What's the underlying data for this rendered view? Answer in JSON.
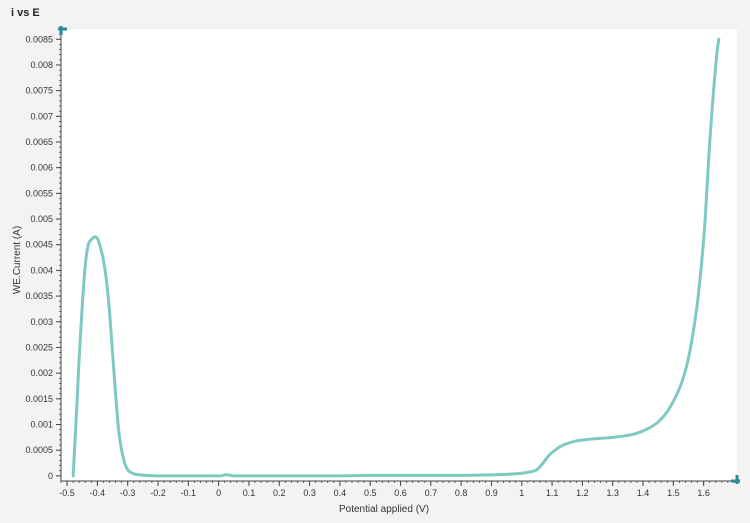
{
  "window": {
    "title": "i vs E"
  },
  "chart_data": {
    "type": "line",
    "title": "i vs E",
    "xlabel": "Potential applied (V)",
    "ylabel": "WE.Current (A)",
    "xlim": [
      -0.52,
      1.71
    ],
    "ylim": [
      -0.0001,
      0.0087
    ],
    "x_ticks": [
      -0.5,
      -0.4,
      -0.3,
      -0.2,
      -0.1,
      0,
      0.1,
      0.2,
      0.3,
      0.4,
      0.5,
      0.6,
      0.7,
      0.8,
      0.9,
      1,
      1.1,
      1.2,
      1.3,
      1.4,
      1.5,
      1.6
    ],
    "x_tick_labels": [
      "-0.5",
      "-0.4",
      "-0.3",
      "-0.2",
      "-0.1",
      "0",
      "0.1",
      "0.2",
      "0.3",
      "0.4",
      "0.5",
      "0.6",
      "0.7",
      "0.8",
      "0.9",
      "1",
      "1.1",
      "1.2",
      "1.3",
      "1.4",
      "1.5",
      "1.6"
    ],
    "y_ticks": [
      0,
      0.0005,
      0.001,
      0.0015,
      0.002,
      0.0025,
      0.003,
      0.0035,
      0.004,
      0.0045,
      0.005,
      0.0055,
      0.006,
      0.0065,
      0.007,
      0.0075,
      0.008,
      0.0085
    ],
    "y_tick_labels": [
      "0",
      "0.0005",
      "0.001",
      "0.0015",
      "0.002",
      "0.0025",
      "0.003",
      "0.0035",
      "0.004",
      "0.0045",
      "0.005",
      "0.0055",
      "0.006",
      "0.0065",
      "0.007",
      "0.0075",
      "0.008",
      "0.0085"
    ],
    "grid": false,
    "legend": "none",
    "colors": {
      "line": "#7ecac3",
      "axis": "#444444",
      "marker": "#2a8a96",
      "plot_bg": "#ffffff",
      "page_bg": "#f3f3f3"
    },
    "series": [
      {
        "x": [
          -0.48,
          -0.47,
          -0.46,
          -0.45,
          -0.44,
          -0.43,
          -0.42,
          -0.41,
          -0.405,
          -0.4,
          -0.395,
          -0.39,
          -0.38,
          -0.37,
          -0.36,
          -0.35,
          -0.34,
          -0.33,
          -0.32,
          -0.31,
          -0.3,
          -0.29,
          -0.28,
          -0.26,
          -0.24,
          -0.2,
          -0.1,
          0.0,
          0.02,
          0.03,
          0.05,
          0.1,
          0.2,
          0.3,
          0.4,
          0.5,
          0.6,
          0.7,
          0.8,
          0.9,
          0.95,
          1.0,
          1.03,
          1.05,
          1.07,
          1.09,
          1.11,
          1.13,
          1.15,
          1.18,
          1.22,
          1.26,
          1.3,
          1.34,
          1.38,
          1.42,
          1.45,
          1.48,
          1.5,
          1.52,
          1.54,
          1.56,
          1.58,
          1.6,
          1.61,
          1.62,
          1.63,
          1.64,
          1.645,
          1.65
        ],
        "y": [
          0.0,
          0.0011,
          0.0023,
          0.0033,
          0.0041,
          0.0045,
          0.0046,
          0.00465,
          0.00465,
          0.00462,
          0.00455,
          0.00445,
          0.0042,
          0.0038,
          0.0032,
          0.0024,
          0.0016,
          0.0009,
          0.0005,
          0.00025,
          0.00012,
          7e-05,
          4e-05,
          2e-05,
          1e-05,
          0.0,
          0.0,
          0.0,
          2e-05,
          2e-05,
          0.0,
          0.0,
          0.0,
          0.0,
          0.0,
          1e-05,
          1e-05,
          1e-05,
          1e-05,
          2e-05,
          3e-05,
          5e-05,
          8e-05,
          0.00012,
          0.00025,
          0.0004,
          0.0005,
          0.00058,
          0.00063,
          0.00068,
          0.00071,
          0.00073,
          0.00075,
          0.00078,
          0.00083,
          0.00093,
          0.00105,
          0.00125,
          0.00145,
          0.0017,
          0.00205,
          0.0026,
          0.0034,
          0.0046,
          0.0055,
          0.0065,
          0.0073,
          0.008,
          0.0083,
          0.0085
        ]
      }
    ]
  }
}
